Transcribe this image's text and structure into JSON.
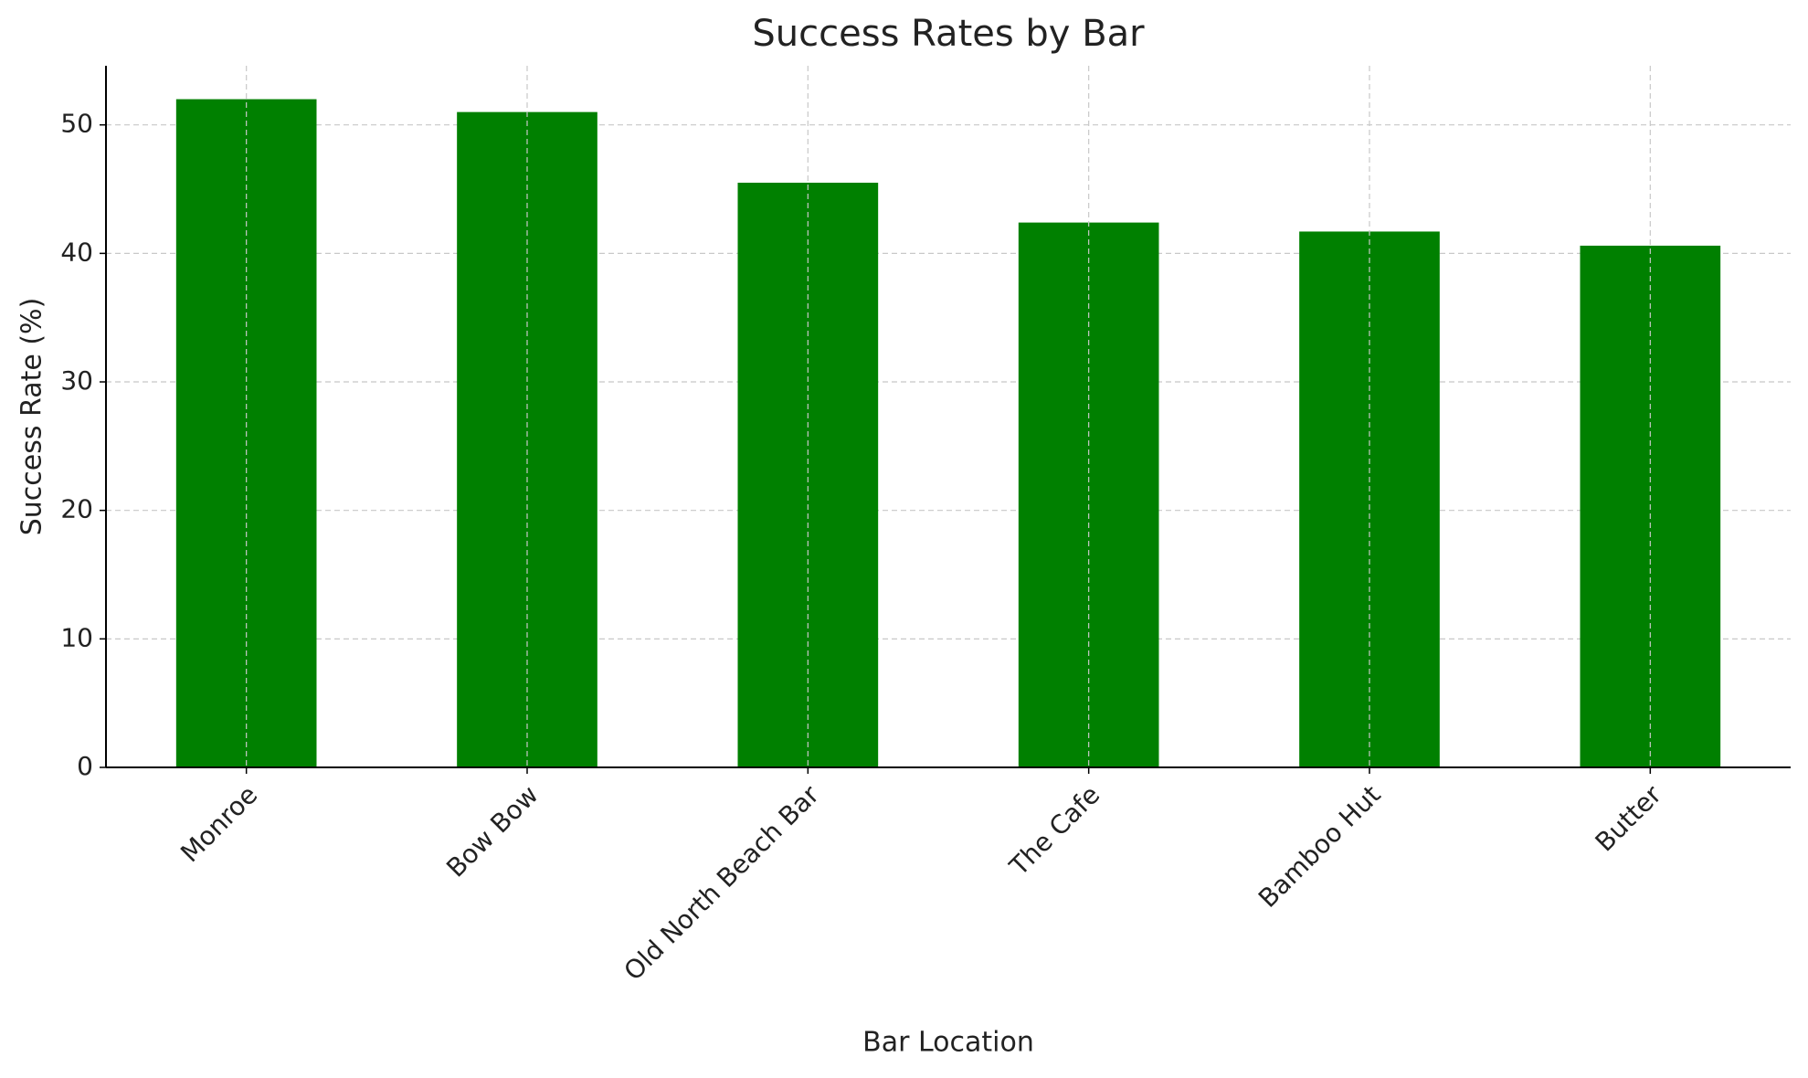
{
  "chart_data": {
    "type": "bar",
    "title": "Success Rates by Bar",
    "x_label": "Bar Location",
    "y_label": "Success Rate (%)",
    "categories": [
      "Monroe",
      "Bow Bow",
      "Old North Beach Bar",
      "The Cafe",
      "Bamboo Hut",
      "Butter"
    ],
    "values": [
      52.0,
      51.0,
      45.5,
      42.4,
      41.7,
      40.6
    ],
    "color": "#008000",
    "ylim": [
      0,
      54.6
    ],
    "yticks": [
      0,
      10,
      20,
      30,
      40,
      50
    ],
    "grid": true
  }
}
